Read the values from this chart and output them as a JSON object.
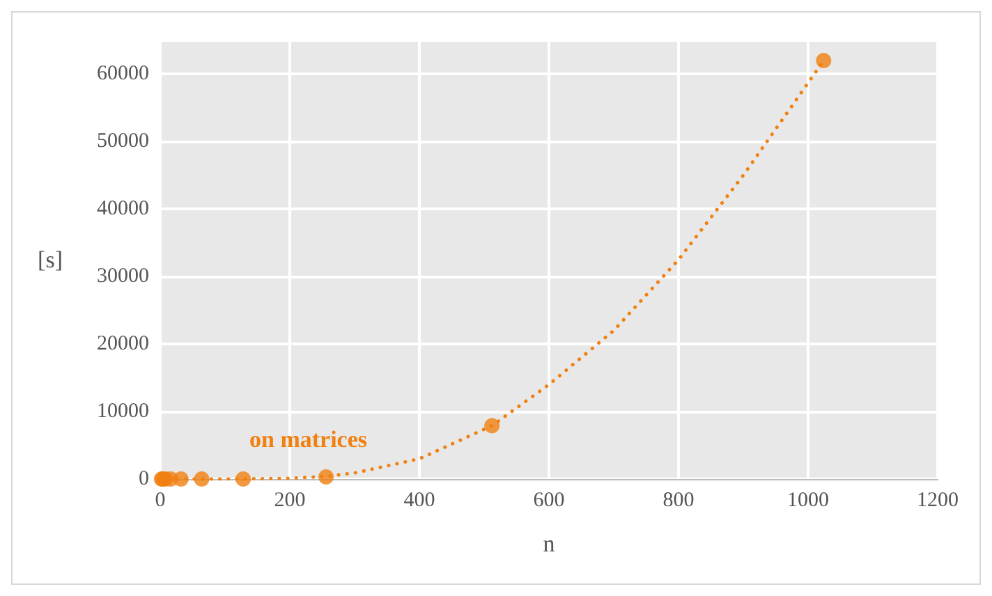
{
  "chart_data": {
    "type": "scatter",
    "xlabel": "n",
    "ylabel": "[s]",
    "x": [
      2,
      4,
      8,
      16,
      32,
      64,
      128,
      256,
      512,
      1024
    ],
    "series": [
      {
        "name": "on matrices",
        "color": "#f08010",
        "values": [
          0,
          0,
          0,
          0,
          0,
          0,
          0,
          300,
          7900,
          62000
        ],
        "marker": "circle"
      },
      {
        "type": "line",
        "color": "#f08010",
        "line_style": "dotted",
        "marker": "none",
        "x": [
          0,
          100,
          200,
          256,
          300,
          400,
          512,
          600,
          700,
          800,
          900,
          1024
        ],
        "values": [
          0,
          0,
          100,
          400,
          900,
          3000,
          7900,
          14000,
          22000,
          32500,
          45000,
          62000
        ]
      }
    ],
    "xlim": [
      0,
      1200
    ],
    "xticks": [
      0,
      200,
      400,
      600,
      800,
      1000,
      1200
    ],
    "ylim": [
      0,
      65000
    ],
    "yticks": [
      0,
      10000,
      20000,
      30000,
      40000,
      50000,
      60000
    ],
    "grid": true,
    "legend": false
  }
}
